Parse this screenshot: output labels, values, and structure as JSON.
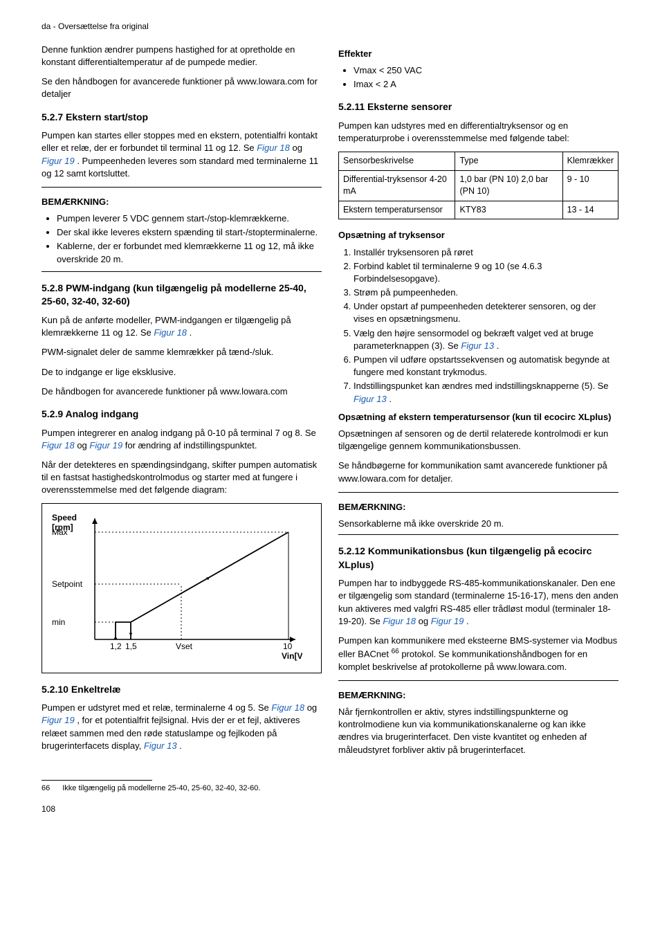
{
  "header": "da - Oversættelse fra original",
  "left": {
    "p1": "Denne funktion ændrer pumpens hastighed for at opretholde en konstant differentialtemperatur af de pumpede medier.",
    "p2": "Se den håndbogen for avancerede funktioner på www.lowara.com for detaljer",
    "s527_title": "5.2.7 Ekstern start/stop",
    "s527_p1a": "Pumpen kan startes eller stoppes med en ekstern, potentialfri kontakt eller et relæ, der er forbundet til terminal 11 og 12. Se ",
    "fig18": "Figur 18",
    "and1": " og ",
    "fig19": "Figur 19",
    "s527_p1b": " . Pumpeenheden leveres som standard med terminalerne 11 og 12 samt kortsluttet.",
    "note_label": "BEMÆRKNING:",
    "s527_li1": "Pumpen leverer 5 VDC gennem start-/stop-klemrækkerne.",
    "s527_li2": "Der skal ikke leveres ekstern spænding til start-/stopterminalerne.",
    "s527_li3": "Kablerne, der er forbundet med klemrækkerne 11 og 12, må ikke overskride 20 m.",
    "s528_title": "5.2.8 PWM-indgang (kun tilgængelig på modellerne 25-40, 25-60, 32-40, 32-60)",
    "s528_p1a": "Kun på de anførte modeller, PWM-indgangen er tilgængelig på klemrækkerne 11 og 12. Se ",
    "s528_p1b": " .",
    "s528_p2": "PWM-signalet deler de samme klemrækker på tænd-/sluk.",
    "s528_p3": "De to indgange er lige eksklusive.",
    "s528_p4": "De håndbogen for avancerede funktioner på www.lowara.com",
    "s529_title": "5.2.9 Analog indgang",
    "s529_p1a": "Pumpen integrerer en analog indgang på 0-10 på terminal 7 og 8. Se ",
    "s529_p1b": " for ændring af indstillingspunktet.",
    "s529_p2": "Når der detekteres en spændingsindgang, skifter pumpen automatisk til en fastsat hastighedskontrolmodus og starter med at fungere i overensstemmelse med det følgende diagram:",
    "chart": {
      "ylabel": "Speed\n[rpm]",
      "xlabel": "Vin[V]",
      "ylabels": [
        "Max",
        "Setpoint",
        "min"
      ],
      "xlabels": [
        "1,2",
        "1,5",
        "Vset",
        "10"
      ],
      "y_positions": [
        20,
        95,
        150
      ],
      "x_positions": [
        30,
        52,
        125,
        280
      ],
      "plot_color": "#000000",
      "bg_color": "#ffffff"
    },
    "s5210_title": "5.2.10 Enkeltrelæ",
    "s5210_p1a": "Pumpen er udstyret med et relæ, terminalerne 4 og 5. Se ",
    "s5210_p1b": " , for et potentialfrit fejlsignal. Hvis der er et fejl, aktiveres relæet sammen med den røde statuslampe og fejlkoden på brugerinterfacets display, ",
    "fig13": "Figur 13",
    "s5210_p1c": " ."
  },
  "right": {
    "effekter_title": "Effekter",
    "effekter_li1": "Vmax < 250 VAC",
    "effekter_li2": "Imax < 2 A",
    "s5211_title": "5.2.11 Eksterne sensorer",
    "s5211_p1": "Pumpen kan udstyres med en differentialtryksensor og en temperaturprobe i overensstemmelse med følgende tabel:",
    "table": {
      "h1": "Sensorbeskrivelse",
      "h2": "Type",
      "h3": "Klemrækker",
      "r1c1": "Differential-tryksensor 4-20 mA",
      "r1c2": "1,0 bar (PN 10) 2,0 bar (PN 10)",
      "r1c3": "9 - 10",
      "r2c1": "Ekstern temperatursensor",
      "r2c2": "KTY83",
      "r2c3": "13 - 14"
    },
    "opsat_title": "Opsætning af tryksensor",
    "ol1": "Installér tryksensoren på røret",
    "ol2": "Forbind kablet til terminalerne 9 og 10 (se 4.6.3 Forbindelsesopgave).",
    "ol3": "Strøm på pumpeenheden.",
    "ol4": "Under opstart af pumpeenheden detekterer sensoren, og der vises en opsætningsmenu.",
    "ol5a": "Vælg den højre sensormodel og bekræft valget ved at bruge parameterknappen (3). Se ",
    "ol5b": " .",
    "ol6": "Pumpen vil udføre opstartssekvensen og automatisk begynde at fungere med konstant trykmodus.",
    "ol7a": "Indstillingspunket kan ændres med indstillingsknapperne (5). Se ",
    "ol7b": " .",
    "opsat2_title": "Opsætning af ekstern temperatursensor (kun til ecocirc XLplus)",
    "opsat2_p1": "Opsætningen af sensoren og de dertil relaterede kontrolmodi er kun tilgængelige gennem kommunikationsbussen.",
    "opsat2_p2": "Se håndbøgerne for kommunikation samt avancerede funktioner på www.lowara.com for detaljer.",
    "note2_p": "Sensorkablerne må ikke overskride 20 m.",
    "s5212_title": "5.2.12 Kommunikationsbus (kun tilgængelig på ecocirc XLplus)",
    "s5212_p1a": "Pumpen har to indbyggede RS-485-kommunikationskanaler. Den ene er tilgængelig som standard (terminalerne 15-16-17), mens den anden kun aktiveres med valgfri RS-485 eller trådløst modul (terminaler 18-19-20). Se ",
    "s5212_p1b": " .",
    "s5212_p2a": "Pumpen kan kommunikere med eksteerne BMS-systemer via Modbus eller BACnet ",
    "sup66": "66",
    "s5212_p2b": " protokol. Se kommunikationshåndbogen for en komplet beskrivelse af protokollerne på www.lowara.com.",
    "note3_p": "Når fjernkontrollen er aktiv, styres indstillingspunkterne og kontrolmodiene kun via kommunikationskanalerne og kan ikke ændres via brugerinterfacet. Den viste kvantitet og enheden af måleudstyret forbliver aktiv på brugerinterfacet."
  },
  "footnote": {
    "num": "66",
    "text": "Ikke tilgængelig på modellerne 25-40, 25-60, 32-40, 32-60."
  },
  "pagenum": "108"
}
